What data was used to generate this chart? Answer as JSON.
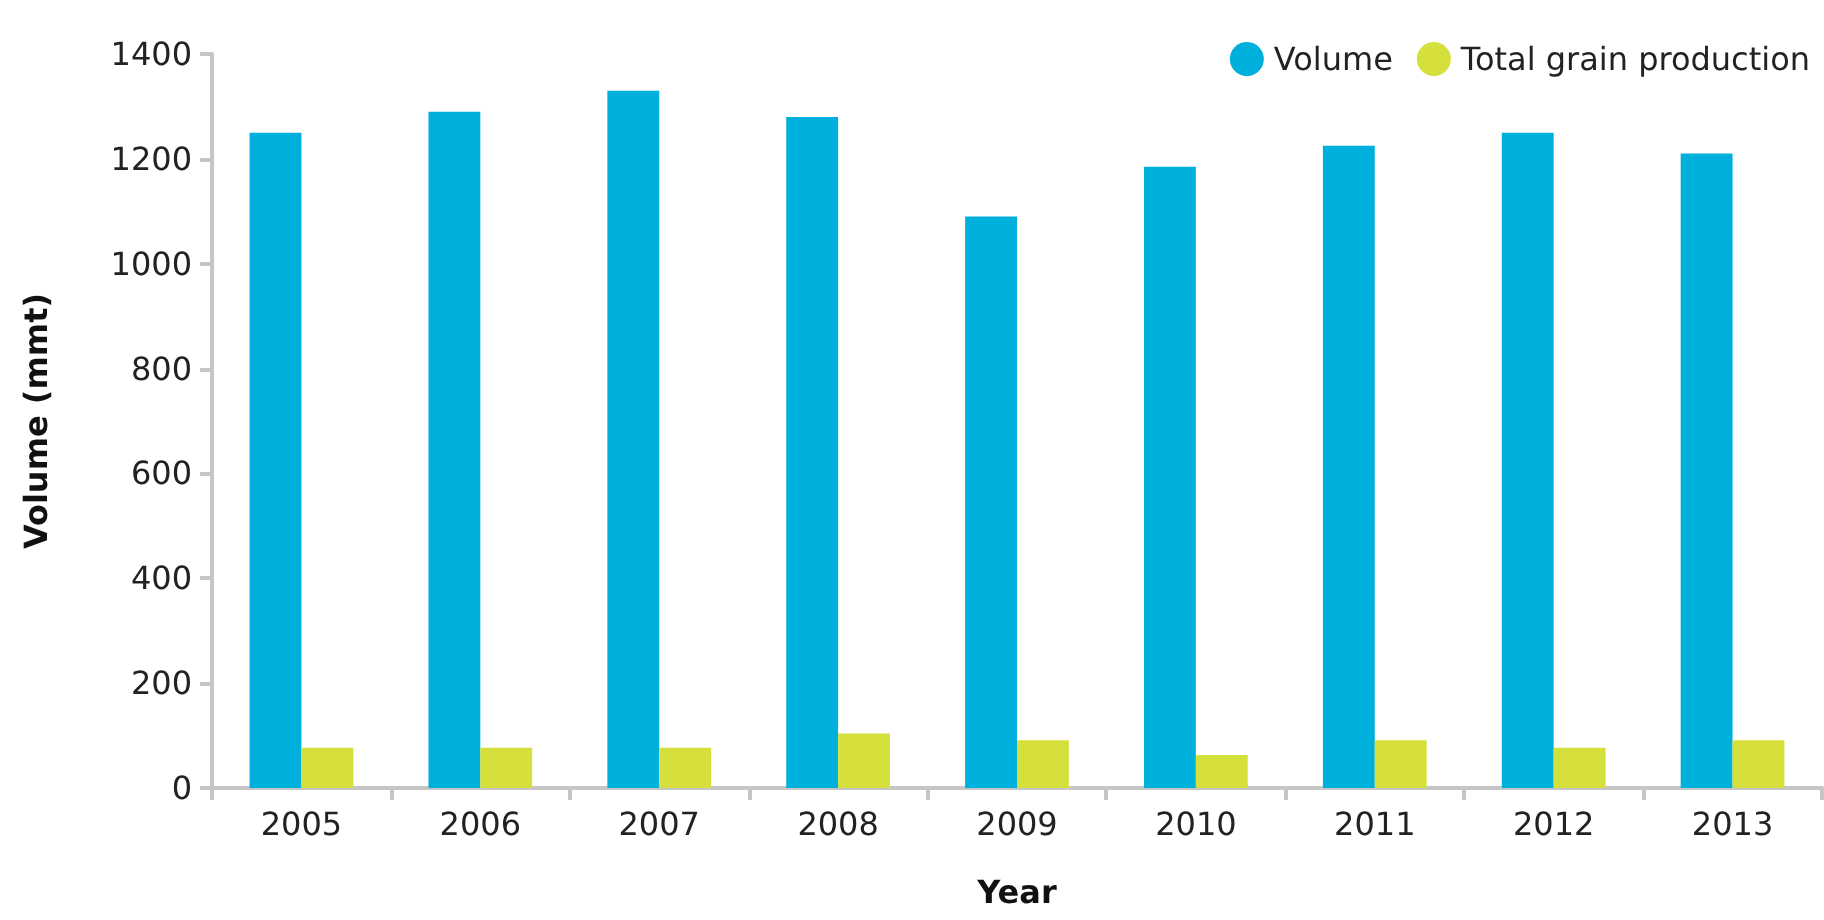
{
  "chart_data": {
    "type": "bar",
    "xlabel": "Year",
    "ylabel": "Volume (mmt)",
    "categories": [
      "2005",
      "2006",
      "2007",
      "2008",
      "2009",
      "2010",
      "2011",
      "2012",
      "2013"
    ],
    "series": [
      {
        "name": "Volume",
        "color": "#00b0dc",
        "values": [
          1250,
          1290,
          1330,
          1280,
          1090,
          1185,
          1225,
          1250,
          1210
        ]
      },
      {
        "name": "Total grain production",
        "color": "#d6e03c",
        "values": [
          77,
          77,
          77,
          104,
          91,
          63,
          91,
          77,
          91
        ]
      }
    ],
    "ylim": [
      0,
      1400
    ],
    "yticks": [
      0,
      200,
      400,
      600,
      800,
      1000,
      1200,
      1400
    ],
    "grid": false,
    "legend": "top right"
  }
}
